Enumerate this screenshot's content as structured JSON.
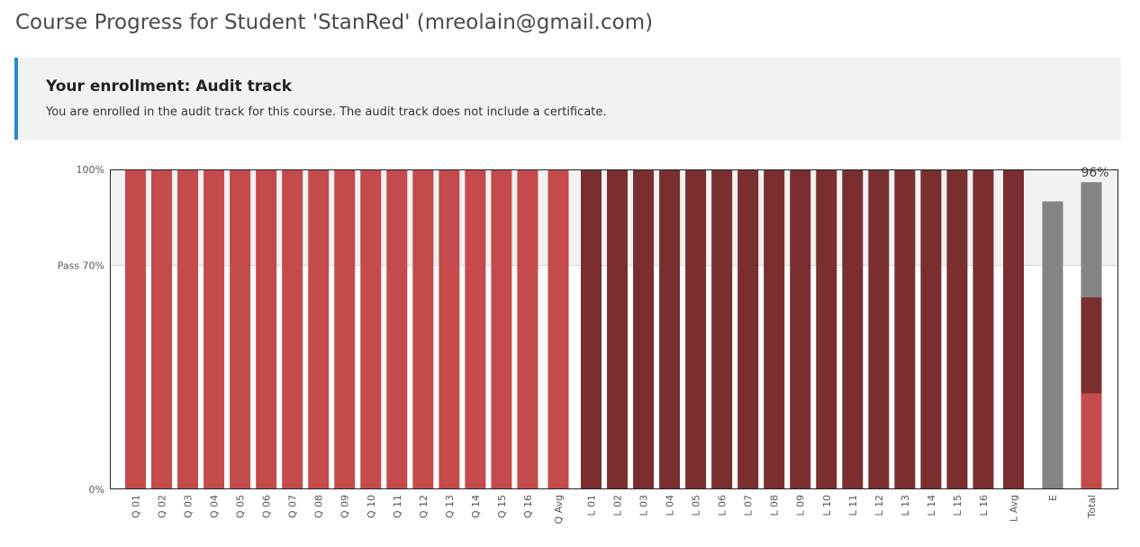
{
  "page": {
    "title": "Course Progress for Student 'StanRed' (mreolain@gmail.com)"
  },
  "enrollment": {
    "heading": "Your enrollment: Audit track",
    "message": "You are enrolled in the audit track for this course. The audit track does not include a certificate."
  },
  "colors": {
    "quiz": "#c44a4c",
    "lab": "#7a2e30",
    "exam": "#848484",
    "pass_band": "#f2f2f2"
  },
  "chart_data": {
    "type": "bar",
    "ylim": [
      0,
      100
    ],
    "y_tick_labels": [
      {
        "value": 0,
        "label": "0%"
      },
      {
        "value": 70,
        "label": "Pass 70%"
      },
      {
        "value": 100,
        "label": "100%"
      }
    ],
    "pass_threshold": 70,
    "categories": [
      "Q 01",
      "Q 02",
      "Q 03",
      "Q 04",
      "Q 05",
      "Q 06",
      "Q 07",
      "Q 08",
      "Q 09",
      "Q 10",
      "Q 11",
      "Q 12",
      "Q 13",
      "Q 14",
      "Q 15",
      "Q 16",
      "Q Avg",
      "L 01",
      "L 02",
      "L 03",
      "L 04",
      "L 05",
      "L 06",
      "L 07",
      "L 08",
      "L 09",
      "L 10",
      "L 11",
      "L 12",
      "L 13",
      "L 14",
      "L 15",
      "L 16",
      "L Avg",
      "E",
      "Total"
    ],
    "values": [
      100,
      100,
      100,
      100,
      100,
      100,
      100,
      100,
      100,
      100,
      100,
      100,
      100,
      100,
      100,
      100,
      100,
      100,
      100,
      100,
      100,
      100,
      100,
      100,
      100,
      100,
      100,
      100,
      100,
      100,
      100,
      100,
      100,
      100,
      90,
      96
    ],
    "groups": [
      "quiz",
      "quiz",
      "quiz",
      "quiz",
      "quiz",
      "quiz",
      "quiz",
      "quiz",
      "quiz",
      "quiz",
      "quiz",
      "quiz",
      "quiz",
      "quiz",
      "quiz",
      "quiz",
      "quiz",
      "lab",
      "lab",
      "lab",
      "lab",
      "lab",
      "lab",
      "lab",
      "lab",
      "lab",
      "lab",
      "lab",
      "lab",
      "lab",
      "lab",
      "lab",
      "lab",
      "lab",
      "exam",
      "total"
    ],
    "total_stack": [
      {
        "group": "quiz",
        "value": 30
      },
      {
        "group": "lab",
        "value": 30
      },
      {
        "group": "exam",
        "value": 36
      }
    ],
    "total_label": "96%"
  }
}
